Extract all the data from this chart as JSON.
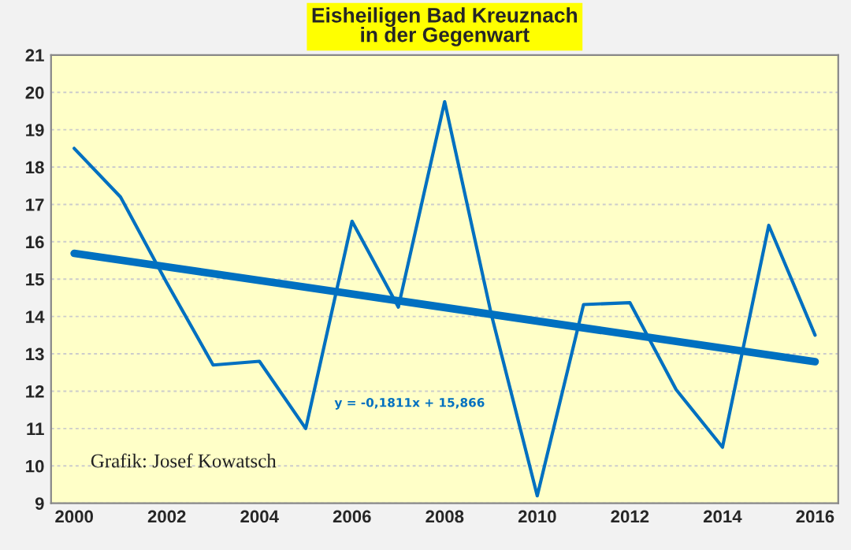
{
  "chart_data": {
    "type": "line",
    "title": "Eisheiligen Bad Kreuznach\nin der Gegenwart",
    "x": [
      2000,
      2001,
      2002,
      2003,
      2004,
      2005,
      2006,
      2007,
      2008,
      2009,
      2010,
      2011,
      2012,
      2013,
      2014,
      2015,
      2016
    ],
    "series": [
      {
        "color": "#0070c0",
        "values": [
          18.5,
          17.2,
          14.9,
          12.7,
          12.8,
          11.0,
          16.55,
          14.25,
          19.75,
          14.1,
          9.2,
          14.32,
          14.37,
          12.04,
          10.5,
          16.44,
          13.5
        ]
      },
      {
        "type": "line",
        "color": "#0070c0",
        "x": [
          2000,
          2016
        ],
        "values": [
          15.69,
          12.79
        ]
      }
    ],
    "xlim": [
      1999.5,
      2016.5
    ],
    "xticks": [
      2000,
      2002,
      2004,
      2006,
      2008,
      2010,
      2012,
      2014,
      2016
    ],
    "ylim": [
      9,
      21
    ],
    "yticks": [
      9,
      10,
      11,
      12,
      13,
      14,
      15,
      16,
      17,
      18,
      19,
      20,
      21
    ],
    "grid": "y",
    "legend": false,
    "marker": "none",
    "line_style": "solid",
    "annotations": [
      "y = -0,1811x + 15,866",
      "Grafik: Josef Kowatsch"
    ]
  }
}
